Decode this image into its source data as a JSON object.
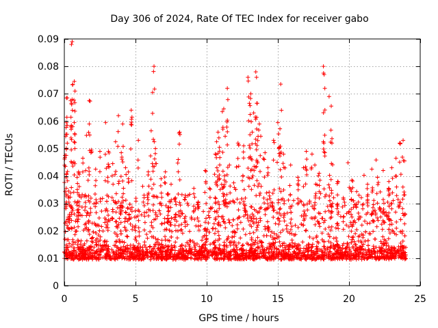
{
  "chart_data": {
    "type": "scatter",
    "title": "Day 306 of 2024, Rate Of TEC Index for receiver gabo",
    "xlabel": "GPS time / hours",
    "ylabel": "ROTI / TECUs",
    "xlim": [
      0,
      25
    ],
    "ylim": [
      0,
      0.09
    ],
    "xticks": [
      0,
      5,
      10,
      15,
      20,
      25
    ],
    "yticks": [
      0,
      0.01,
      0.02,
      0.03,
      0.04,
      0.05,
      0.06,
      0.07,
      0.08,
      0.09
    ],
    "xtick_labels": [
      "0",
      "5",
      "10",
      "15",
      "20",
      "25"
    ],
    "ytick_labels": [
      "0",
      "0.01",
      "0.02",
      "0.03",
      "0.04",
      "0.05",
      "0.06",
      "0.07",
      "0.08",
      "0.09"
    ],
    "grid": true,
    "marker": "plus",
    "color": "#ff0000",
    "series": [
      {
        "points": [
          [
            0.05,
            0.0475
          ],
          [
            0.1,
            0.0545
          ],
          [
            0.15,
            0.0595
          ],
          [
            0.2,
            0.0685
          ],
          [
            0.3,
            0.0345
          ],
          [
            0.45,
            0.0675
          ],
          [
            0.5,
            0.0665
          ],
          [
            0.5,
            0.088
          ],
          [
            0.55,
            0.089
          ],
          [
            0.7,
            0.0745
          ],
          [
            0.75,
            0.071
          ],
          [
            0.7,
            0.0595
          ],
          [
            0.9,
            0.0395
          ],
          [
            1.0,
            0.0415
          ],
          [
            1.3,
            0.0465
          ],
          [
            1.5,
            0.042
          ],
          [
            1.75,
            0.059
          ],
          [
            1.75,
            0.0675
          ],
          [
            1.9,
            0.0495
          ],
          [
            2.2,
            0.0425
          ],
          [
            2.5,
            0.049
          ],
          [
            2.9,
            0.0595
          ],
          [
            3.1,
            0.049
          ],
          [
            3.4,
            0.0445
          ],
          [
            3.6,
            0.0525
          ],
          [
            3.8,
            0.062
          ],
          [
            4.0,
            0.0485
          ],
          [
            4.1,
            0.059
          ],
          [
            4.3,
            0.043
          ],
          [
            4.5,
            0.039
          ],
          [
            4.7,
            0.064
          ],
          [
            4.75,
            0.0615
          ],
          [
            5.2,
            0.053
          ],
          [
            5.6,
            0.033
          ],
          [
            5.9,
            0.0415
          ],
          [
            6.1,
            0.0565
          ],
          [
            6.2,
            0.0705
          ],
          [
            6.3,
            0.08
          ],
          [
            6.4,
            0.05
          ],
          [
            6.8,
            0.039
          ],
          [
            7.1,
            0.0415
          ],
          [
            7.3,
            0.0335
          ],
          [
            7.5,
            0.037
          ],
          [
            7.8,
            0.032
          ],
          [
            8.0,
            0.046
          ],
          [
            8.1,
            0.056
          ],
          [
            8.5,
            0.033
          ],
          [
            9.1,
            0.0355
          ],
          [
            9.4,
            0.0305
          ],
          [
            9.9,
            0.042
          ],
          [
            10.2,
            0.0355
          ],
          [
            10.6,
            0.048
          ],
          [
            10.7,
            0.0525
          ],
          [
            10.8,
            0.056
          ],
          [
            10.9,
            0.0505
          ],
          [
            11.1,
            0.0635
          ],
          [
            11.2,
            0.0645
          ],
          [
            11.3,
            0.0545
          ],
          [
            11.45,
            0.072
          ],
          [
            11.6,
            0.044
          ],
          [
            11.9,
            0.0375
          ],
          [
            12.2,
            0.052
          ],
          [
            12.6,
            0.051
          ],
          [
            12.9,
            0.076
          ],
          [
            13.0,
            0.0665
          ],
          [
            13.1,
            0.07
          ],
          [
            13.2,
            0.056
          ],
          [
            13.3,
            0.063
          ],
          [
            13.45,
            0.078
          ],
          [
            13.5,
            0.076
          ],
          [
            13.55,
            0.0665
          ],
          [
            13.7,
            0.059
          ],
          [
            13.8,
            0.0545
          ],
          [
            14.1,
            0.0485
          ],
          [
            14.3,
            0.043
          ],
          [
            14.7,
            0.053
          ],
          [
            15.0,
            0.0595
          ],
          [
            15.1,
            0.0505
          ],
          [
            15.2,
            0.0735
          ],
          [
            15.4,
            0.048
          ],
          [
            15.9,
            0.044
          ],
          [
            16.4,
            0.0395
          ],
          [
            16.8,
            0.043
          ],
          [
            17.0,
            0.049
          ],
          [
            17.4,
            0.048
          ],
          [
            17.6,
            0.044
          ],
          [
            17.9,
            0.041
          ],
          [
            18.2,
            0.08
          ],
          [
            18.25,
            0.077
          ],
          [
            18.3,
            0.072
          ],
          [
            18.6,
            0.069
          ],
          [
            18.75,
            0.0655
          ],
          [
            18.8,
            0.052
          ],
          [
            19.2,
            0.038
          ],
          [
            19.6,
            0.032
          ],
          [
            20.2,
            0.0385
          ],
          [
            20.7,
            0.033
          ],
          [
            21.3,
            0.037
          ],
          [
            21.6,
            0.0425
          ],
          [
            22.0,
            0.0395
          ],
          [
            22.4,
            0.042
          ],
          [
            22.8,
            0.038
          ],
          [
            23.0,
            0.043
          ],
          [
            23.3,
            0.0465
          ],
          [
            23.6,
            0.052
          ],
          [
            23.8,
            0.053
          ],
          [
            23.9,
            0.0455
          ]
        ],
        "background_band": {
          "comment_free": true,
          "x_range": [
            0,
            24
          ],
          "baseline": 0.0125
        }
      }
    ]
  }
}
